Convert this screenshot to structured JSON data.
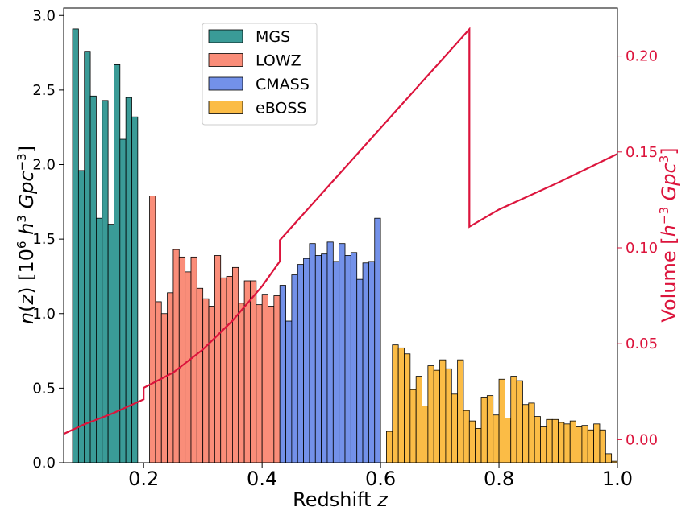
{
  "chart_data": {
    "type": "bar",
    "xlabel": "Redshift z",
    "ylabel_left": "n(z) [10^6 h^3 Gpc^-3]",
    "ylabel_right": "Volume [h^-3 Gpc^3]",
    "xlim": [
      0.065,
      1.0
    ],
    "ylim_left": [
      0,
      3.05
    ],
    "ylim_right": [
      -0.012,
      0.225
    ],
    "x_ticks": [
      0.2,
      0.4,
      0.6,
      0.8,
      1.0
    ],
    "x_tick_labels": [
      "0.2",
      "0.4",
      "0.6",
      "0.8",
      "1.0"
    ],
    "y_ticks_left": [
      0.0,
      0.5,
      1.0,
      1.5,
      2.0,
      2.5,
      3.0
    ],
    "y_tick_labels_left": [
      "0.0",
      "0.5",
      "1.0",
      "1.5",
      "2.0",
      "2.5",
      "3.0"
    ],
    "y_ticks_right": [
      0.0,
      0.05,
      0.1,
      0.15,
      0.2
    ],
    "y_tick_labels_right": [
      "0.00",
      "0.05",
      "0.10",
      "0.15",
      "0.20"
    ],
    "bin_width": 0.01,
    "legend_position": "top-center",
    "series": [
      {
        "name": "MGS",
        "color": "#3a9b97",
        "bin_start": 0.08,
        "values": [
          2.91,
          1.96,
          2.76,
          2.46,
          1.64,
          2.43,
          1.6,
          2.67,
          2.17,
          2.45,
          2.32
        ]
      },
      {
        "name": "LOWZ",
        "color": "#fa8d79",
        "bin_start": 0.21,
        "values": [
          1.79,
          1.08,
          1.0,
          1.14,
          1.43,
          1.38,
          1.28,
          1.38,
          1.17,
          1.1,
          1.05,
          1.39,
          1.24,
          1.25,
          1.31,
          1.07,
          1.22,
          1.22,
          1.06,
          1.13,
          1.05,
          1.12
        ]
      },
      {
        "name": "CMASS",
        "color": "#7391e9",
        "bin_start": 0.43,
        "values": [
          1.19,
          0.95,
          1.26,
          1.33,
          1.37,
          1.47,
          1.39,
          1.4,
          1.48,
          1.35,
          1.47,
          1.39,
          1.41,
          1.23,
          1.34,
          1.35,
          1.64
        ]
      },
      {
        "name": "eBOSS",
        "color": "#fbbc46",
        "bin_start": 0.61,
        "values": [
          0.21,
          0.79,
          0.77,
          0.73,
          0.49,
          0.58,
          0.38,
          0.65,
          0.62,
          0.69,
          0.63,
          0.46,
          0.69,
          0.35,
          0.28,
          0.23,
          0.44,
          0.45,
          0.32,
          0.56,
          0.3,
          0.58,
          0.55,
          0.39,
          0.4,
          0.31,
          0.24,
          0.29,
          0.29,
          0.27,
          0.26,
          0.28,
          0.24,
          0.25,
          0.22,
          0.26,
          0.22,
          0.06,
          0.01
        ]
      }
    ],
    "volume_line": {
      "color": "#dc143c",
      "points": [
        [
          0.065,
          0.003
        ],
        [
          0.1,
          0.008
        ],
        [
          0.15,
          0.014
        ],
        [
          0.2,
          0.021
        ],
        [
          0.2,
          0.027
        ],
        [
          0.25,
          0.035
        ],
        [
          0.3,
          0.047
        ],
        [
          0.35,
          0.062
        ],
        [
          0.4,
          0.08
        ],
        [
          0.43,
          0.093
        ],
        [
          0.43,
          0.104
        ],
        [
          0.75,
          0.214
        ],
        [
          0.75,
          0.111
        ],
        [
          0.8,
          0.12
        ],
        [
          0.9,
          0.134
        ],
        [
          1.0,
          0.149
        ]
      ]
    }
  }
}
